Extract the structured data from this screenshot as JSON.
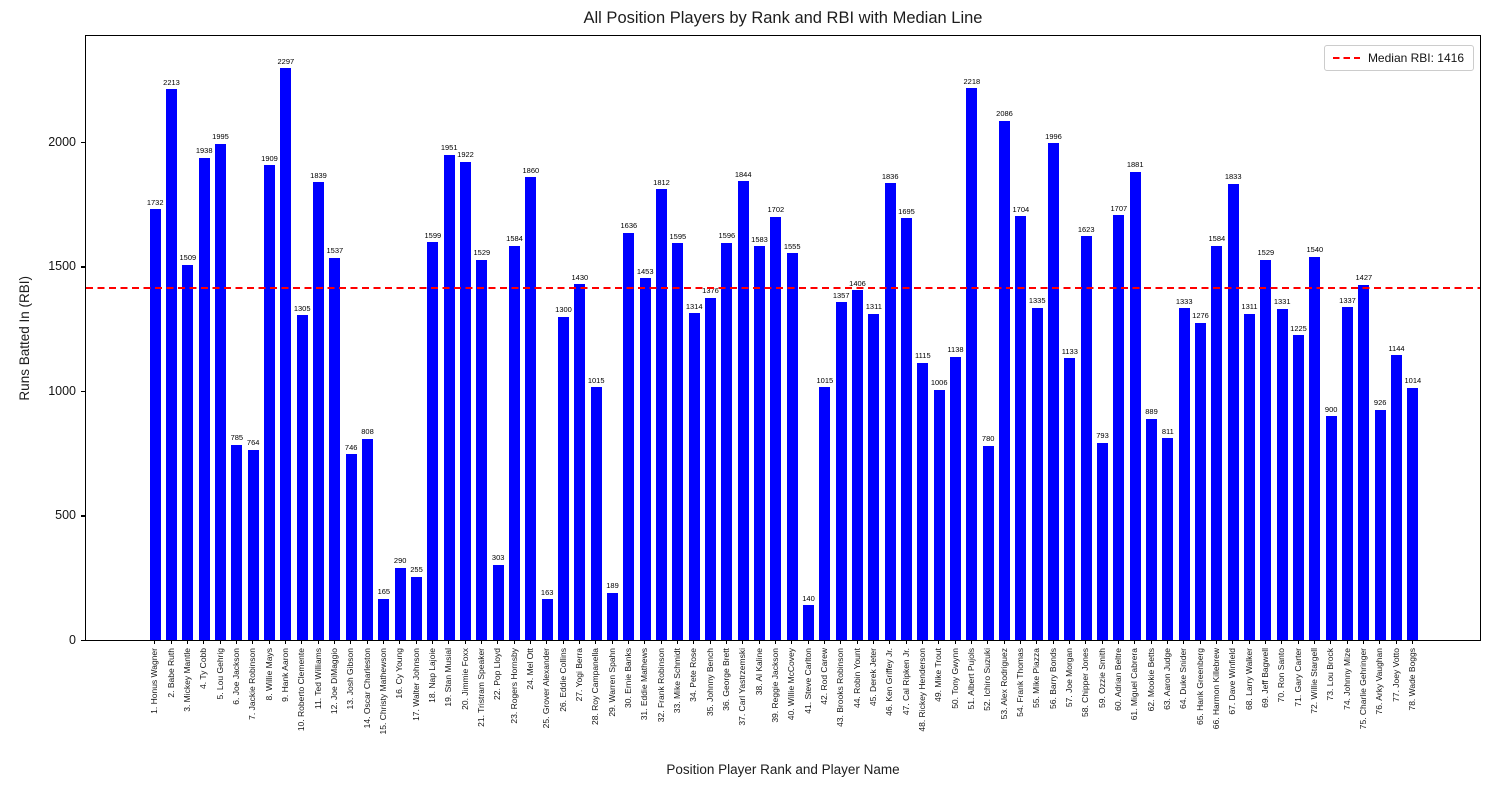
{
  "chart_data": {
    "type": "bar",
    "title": "All Position Players by Rank and RBI with Median Line",
    "xlabel": "Position Player Rank and Player Name",
    "ylabel": "Runs Batted In (RBI)",
    "categories": [
      "1. Honus Wagner",
      "2. Babe Ruth",
      "3. Mickey Mantle",
      "4. Ty Cobb",
      "5. Lou Gehrig",
      "6. Joe Jackson",
      "7. Jackie Robinson",
      "8. Willie Mays",
      "9. Hank Aaron",
      "10. Roberto Clemente",
      "11. Ted Williams",
      "12. Joe DiMaggio",
      "13. Josh Gibson",
      "14. Oscar Charleston",
      "15. Christy Mathewson",
      "16. Cy Young",
      "17. Walter Johnson",
      "18. Nap Lajoie",
      "19. Stan Musial",
      "20. Jimmie Foxx",
      "21. Tristram Speaker",
      "22. Pop Lloyd",
      "23. Rogers Hornsby",
      "24. Mel Ott",
      "25. Grover Alexander",
      "26. Eddie Collins",
      "27. Yogi Berra",
      "28. Roy Campanella",
      "29. Warren Spahn",
      "30. Ernie Banks",
      "31. Eddie Mathews",
      "32. Frank Robinson",
      "33. Mike Schmidt",
      "34. Pete Rose",
      "35. Johnny Bench",
      "36. George Brett",
      "37. Carl Yastrzemski",
      "38. Al Kaline",
      "39. Reggie Jackson",
      "40. Willie McCovey",
      "41. Steve Carlton",
      "42. Rod Carew",
      "43. Brooks Robinson",
      "44. Robin Yount",
      "45. Derek Jeter",
      "46. Ken Griffey Jr.",
      "47. Cal Ripken Jr.",
      "48. Rickey Henderson",
      "49. Mike Trout",
      "50. Tony Gwynn",
      "51. Albert Pujols",
      "52. Ichiro Suzuki",
      "53. Alex Rodriguez",
      "54. Frank Thomas",
      "55. Mike Piazza",
      "56. Barry Bonds",
      "57. Joe Morgan",
      "58. Chipper Jones",
      "59. Ozzie Smith",
      "60. Adrian Beltre",
      "61. Miguel Cabrera",
      "62. Mookie Betts",
      "63. Aaron Judge",
      "64. Duke Snider",
      "65. Hank Greenberg",
      "66. Harmon Killebrew",
      "67. Dave Winfield",
      "68. Larry Walker",
      "69. Jeff Bagwell",
      "70. Ron Santo",
      "71. Gary Carter",
      "72. Willie Stargell",
      "73. Lou Brock",
      "74. Johnny Mize",
      "75. Charlie Gehringer",
      "76. Arky Vaughan",
      "77. Joey Votto",
      "78. Wade Boggs"
    ],
    "values": [
      1732,
      2213,
      1509,
      1938,
      1995,
      785,
      764,
      1909,
      2297,
      1305,
      1839,
      1537,
      746,
      808,
      165,
      290,
      255,
      1599,
      1951,
      1922,
      1529,
      303,
      1584,
      1860,
      163,
      1300,
      1430,
      1015,
      189,
      1636,
      1453,
      1812,
      1595,
      1314,
      1376,
      1596,
      1844,
      1583,
      1702,
      1555,
      140,
      1015,
      1357,
      1406,
      1311,
      1836,
      1695,
      1115,
      1006,
      1138,
      2218,
      780,
      2086,
      1704,
      1335,
      1996,
      1133,
      1623,
      793,
      1707,
      1881,
      889,
      811,
      1333,
      1276,
      1584,
      1833,
      1311,
      1529,
      1331,
      1225,
      1540,
      900,
      1337,
      1427,
      926,
      1144,
      1014
    ],
    "ylim": [
      0,
      2425
    ],
    "yticks": [
      0,
      500,
      1000,
      1500,
      2000
    ],
    "grid": false,
    "bar_color": "#0000ff",
    "value_label_color": "#000000",
    "median": {
      "value": 1416,
      "color": "#ff0000",
      "style": "dashed"
    },
    "legend": {
      "label": "Median RBI: 1416",
      "position": "upper right"
    }
  }
}
